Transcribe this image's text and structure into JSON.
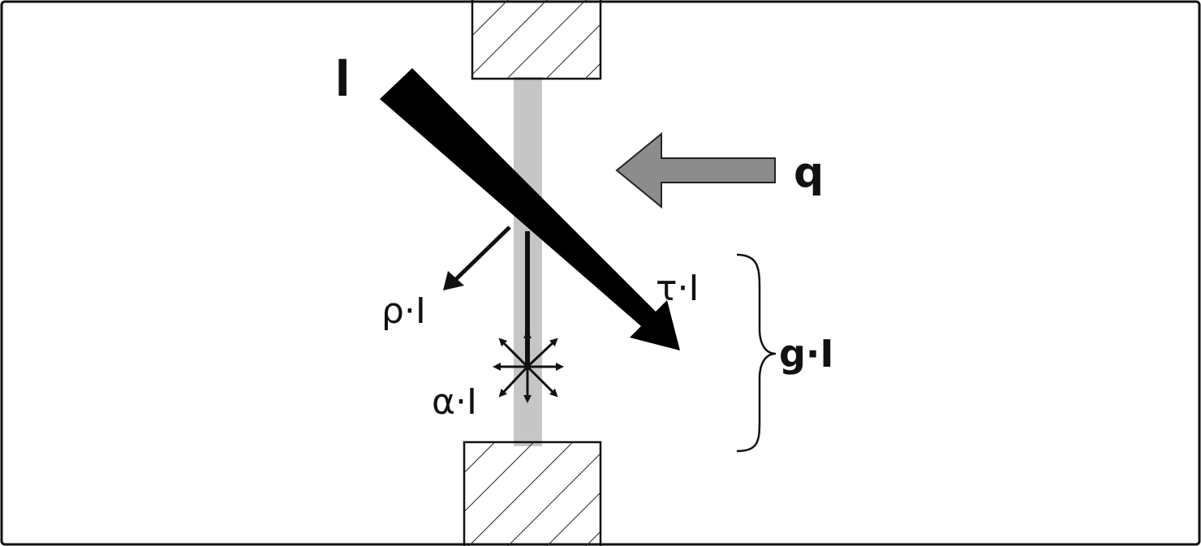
{
  "labels": {
    "incident": "I",
    "heat_flux": "q",
    "reflected": "ρ·I",
    "transmitted": "τ·I",
    "absorbed": "α·I",
    "total_gain": "g·I"
  },
  "colors": {
    "frame": "#111111",
    "incident_beam": "#000000",
    "heat_arrow_fill": "#8c8c8c",
    "pane": "#c6c6c6",
    "hatch": "#222222"
  }
}
